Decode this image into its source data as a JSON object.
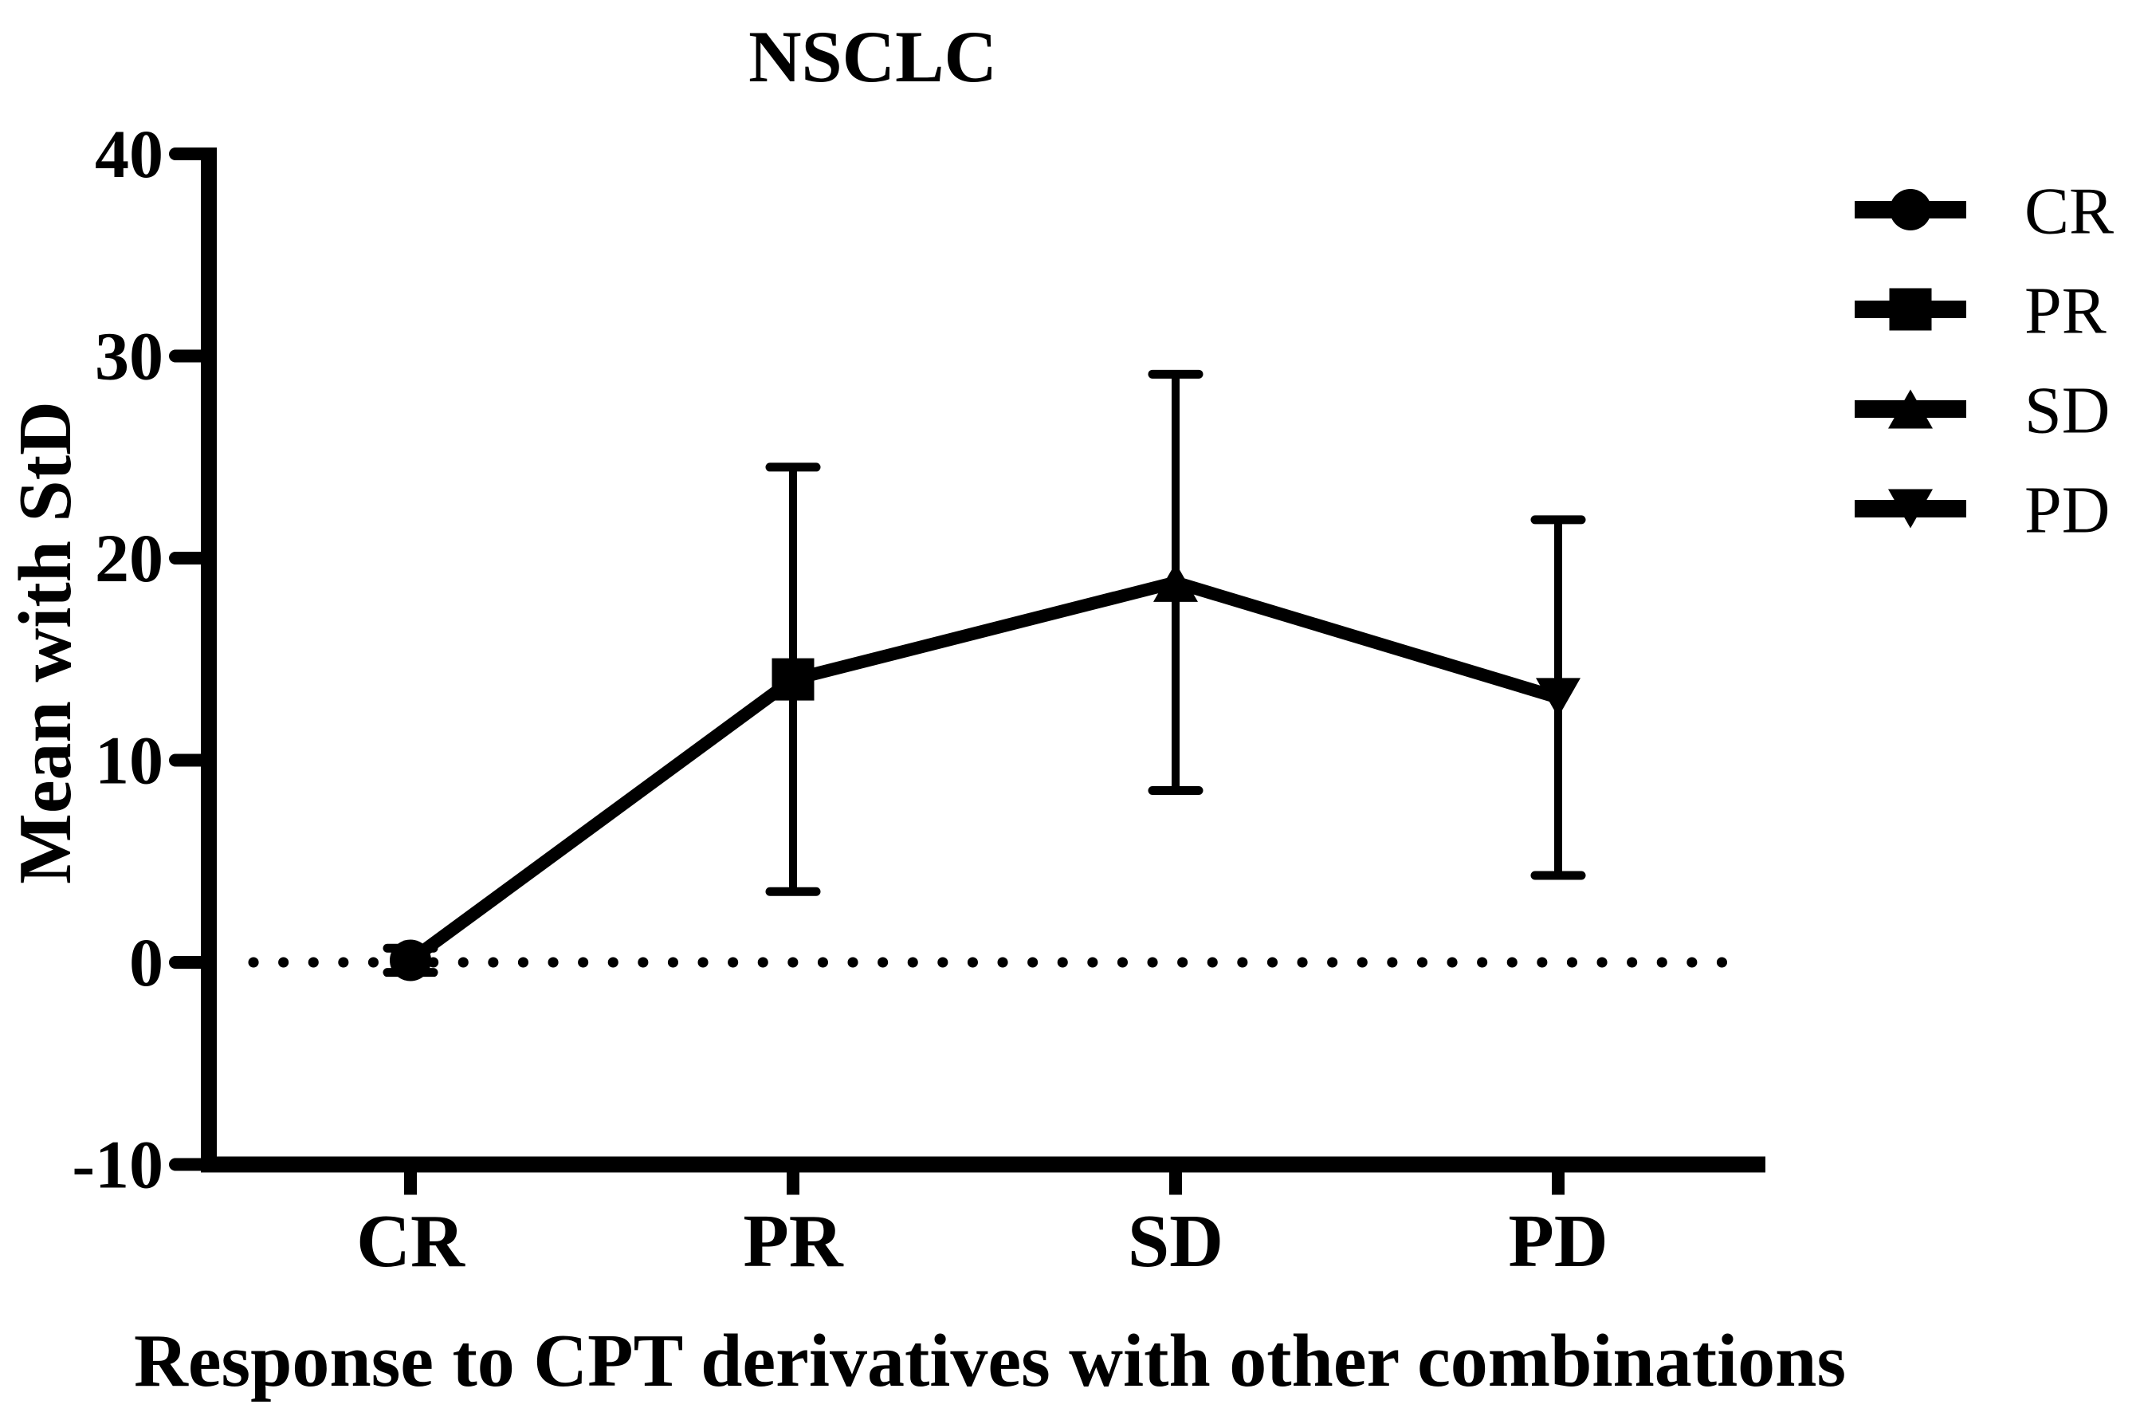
{
  "figure": {
    "background": "#ffffff",
    "ink_color": "#000000"
  },
  "chart_data": {
    "type": "line",
    "title": "NSCLC",
    "xlabel": "Response to CPT derivatives with other combinations",
    "ylabel": "Mean with StD",
    "categories": [
      "CR",
      "PR",
      "SD",
      "PD"
    ],
    "series": [
      {
        "name": "Mean with StD",
        "values": [
          0.1,
          14.0,
          18.8,
          13.1
        ],
        "error_plus": [
          0.6,
          10.5,
          10.3,
          8.8
        ],
        "error_minus": [
          0.6,
          10.5,
          10.3,
          8.8
        ],
        "marker_by_category": [
          "circle",
          "square",
          "triangle-up",
          "triangle-down"
        ]
      }
    ],
    "ylim": [
      -10,
      40
    ],
    "yticks": [
      40,
      30,
      20,
      10,
      0,
      -10
    ],
    "grid": false,
    "zero_line": "dotted",
    "legend": {
      "position": "right",
      "entries": [
        {
          "label": "CR",
          "marker": "circle"
        },
        {
          "label": "PR",
          "marker": "square"
        },
        {
          "label": "SD",
          "marker": "triangle-up"
        },
        {
          "label": "PD",
          "marker": "triangle-down"
        }
      ]
    }
  }
}
